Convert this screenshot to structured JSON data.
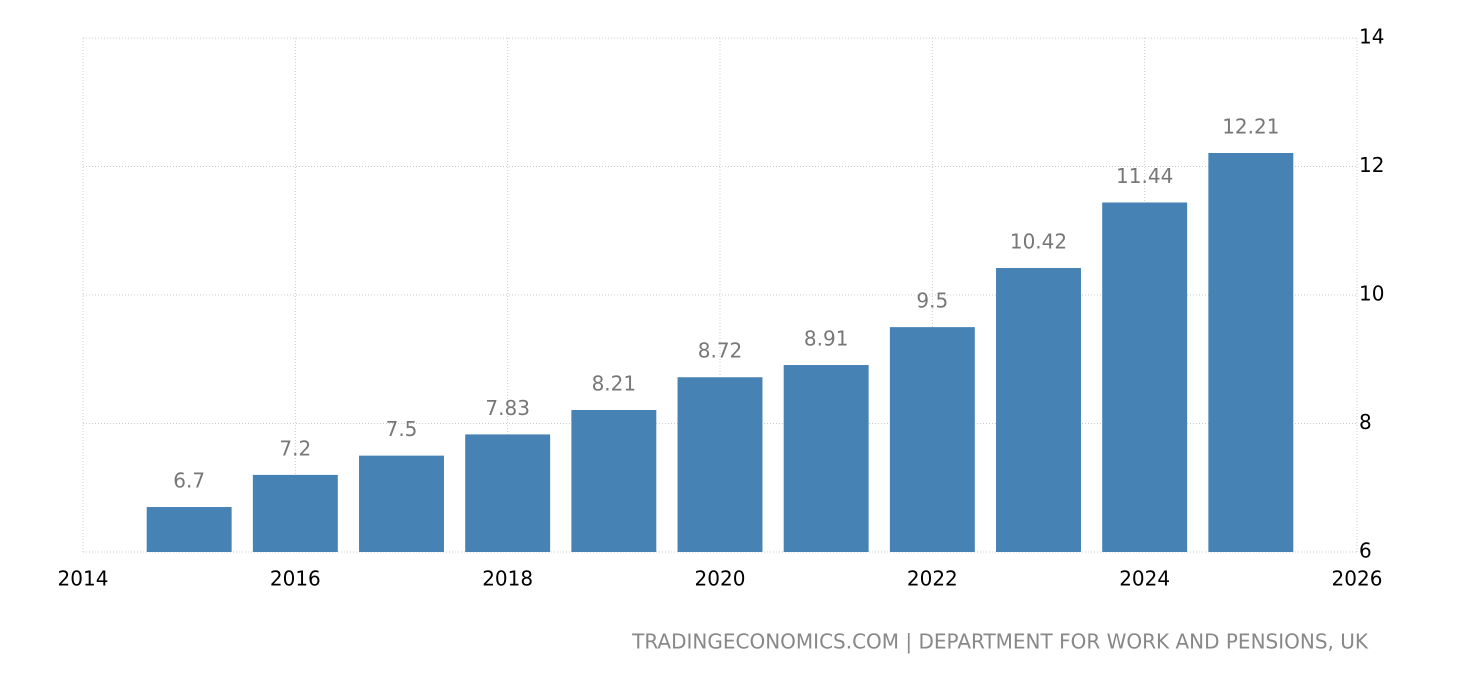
{
  "chart_data": {
    "type": "bar",
    "source": "TRADINGECONOMICS.COM | DEPARTMENT FOR WORK AND PENSIONS, UK",
    "x": [
      2015,
      2016,
      2017,
      2018,
      2019,
      2020,
      2021,
      2022,
      2023,
      2024,
      2025
    ],
    "values": [
      6.7,
      7.2,
      7.5,
      7.83,
      8.21,
      8.72,
      8.91,
      9.5,
      10.42,
      11.44,
      12.21
    ],
    "color": "#4682b4",
    "xlim": [
      2014,
      2026
    ],
    "xticks": [
      2014,
      2016,
      2018,
      2020,
      2022,
      2024,
      2026
    ],
    "ylim": [
      6,
      14
    ],
    "yticks": [
      6,
      8,
      10,
      12,
      14
    ],
    "grid": true
  }
}
